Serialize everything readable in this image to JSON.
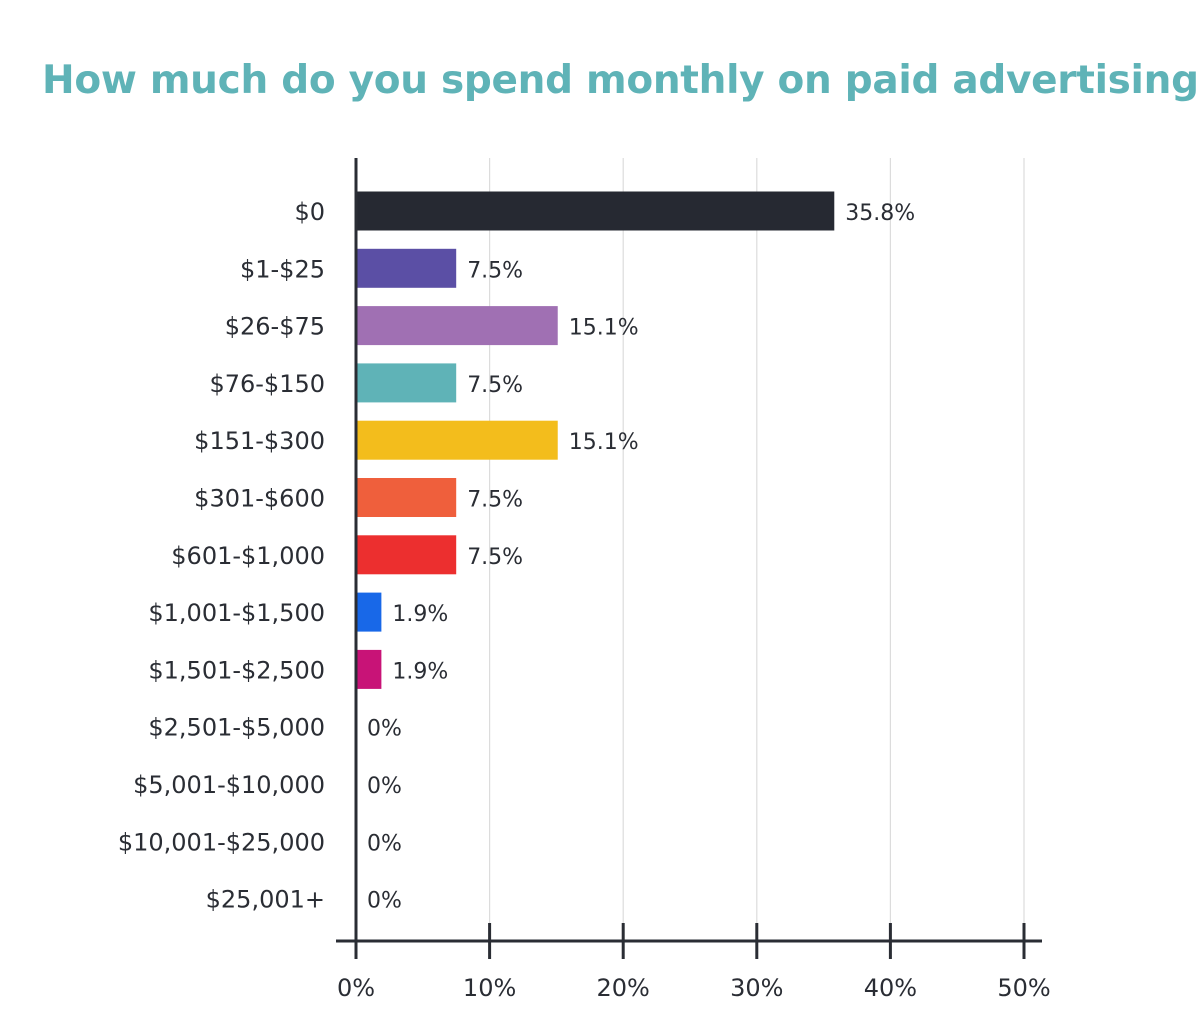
{
  "chart_data": {
    "type": "bar",
    "orientation": "horizontal",
    "title": "How much do you spend monthly on paid advertising?",
    "xlabel": "",
    "ylabel": "",
    "xlim": [
      0,
      50
    ],
    "x_ticks": [
      0,
      10,
      20,
      30,
      40,
      50
    ],
    "x_tick_labels": [
      "0%",
      "10%",
      "20%",
      "30%",
      "40%",
      "50%"
    ],
    "grid": "vertical",
    "categories": [
      "$0",
      "$1-$25",
      "$26-$75",
      "$76-$150",
      "$151-$300",
      "$301-$600",
      "$601-$1,000",
      "$1,001-$1,500",
      "$1,501-$2,500",
      "$2,501-$5,000",
      "$5,001-$10,000",
      "$10,001-$25,000",
      "$25,001+"
    ],
    "values": [
      35.8,
      7.5,
      15.1,
      7.5,
      15.1,
      7.5,
      7.5,
      1.9,
      1.9,
      0,
      0,
      0,
      0
    ],
    "value_labels": [
      "35.8%",
      "7.5%",
      "15.1%",
      "7.5%",
      "15.1%",
      "7.5%",
      "7.5%",
      "1.9%",
      "1.9%",
      "0%",
      "0%",
      "0%",
      "0%"
    ],
    "colors": [
      "#262932",
      "#5b4fa5",
      "#a070b3",
      "#5fb3b7",
      "#f3bd1c",
      "#ef5f3c",
      "#ec2f2f",
      "#1868e8",
      "#c81377",
      "#cccccc",
      "#cccccc",
      "#cccccc",
      "#cccccc"
    ],
    "title_color": "#5fb3b7",
    "axis_color": "#2a2d34",
    "grid_color": "#dcdcdc"
  }
}
